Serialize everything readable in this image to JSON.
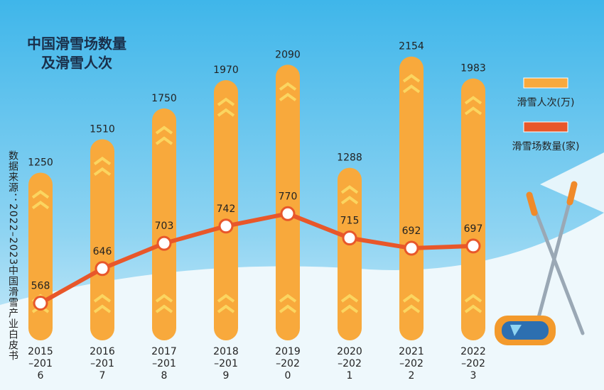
{
  "chart_data": {
    "type": "bar-line",
    "title": "中国滑雪场数量",
    "subtitle": "及滑雪人次",
    "source": "数据来源：2022–2023中国滑雪产业白皮书",
    "categories": [
      "2015–2016",
      "2016–2017",
      "2017–2018",
      "2018–2019",
      "2019–2020",
      "2020–2021",
      "2021–2022",
      "2022–2023"
    ],
    "series": [
      {
        "name": "滑雪人次(万)",
        "color": "#f8a93c",
        "type": "bar",
        "axis": "y",
        "values": [
          1250,
          1510,
          1750,
          1970,
          2090,
          1288,
          2154,
          1983
        ]
      },
      {
        "name": "滑雪场数量(家)",
        "color": "#e8572a",
        "type": "line",
        "axis": "y2",
        "values": [
          568,
          646,
          703,
          742,
          770,
          715,
          692,
          697
        ]
      }
    ],
    "ylim": [
      0,
      2500
    ],
    "y2lim": [
      500,
      1225
    ],
    "legend": "top-right"
  }
}
